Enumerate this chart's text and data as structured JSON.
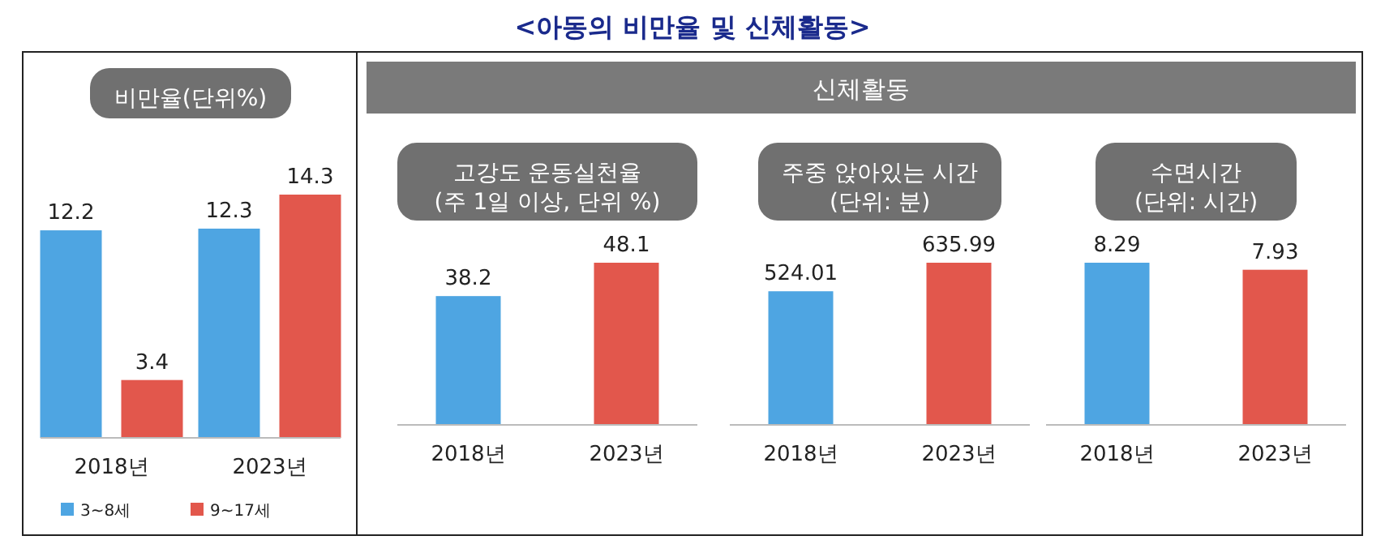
{
  "chart_data": [
    {
      "type": "bar",
      "title": "비만율(단위%)",
      "annotations": [
        "<아동의 비만율 및 신체활동>"
      ],
      "categories": [
        "2018년",
        "2023년"
      ],
      "data_labels": true,
      "legend": "bottom",
      "series": [
        {
          "name": "3~8세",
          "color": "#4ea5e2",
          "values": [
            12.2,
            12.3
          ]
        },
        {
          "name": "9~17세",
          "color": "#e2574c",
          "values": [
            3.4,
            14.3
          ]
        }
      ]
    },
    {
      "type": "bar",
      "title": "고강도 운동실천율\n(주 1일 이상, 단위 %)",
      "annotations": [
        "신체활동"
      ],
      "categories": [
        "2018년",
        "2023년"
      ],
      "values": [
        38.2,
        48.1
      ],
      "colors": [
        "#4ea5e2",
        "#e2574c"
      ],
      "data_labels": true
    },
    {
      "type": "bar",
      "title": "주중 앉아있는 시간\n(단위: 분)",
      "categories": [
        "2018년",
        "2023년"
      ],
      "values": [
        524.01,
        635.99
      ],
      "colors": [
        "#4ea5e2",
        "#e2574c"
      ],
      "data_labels": true
    },
    {
      "type": "bar",
      "title": "수면시간\n(단위: 시간)",
      "categories": [
        "2018년",
        "2023년"
      ],
      "values": [
        8.29,
        7.93
      ],
      "colors": [
        "#4ea5e2",
        "#e2574c"
      ],
      "data_labels": true
    }
  ]
}
